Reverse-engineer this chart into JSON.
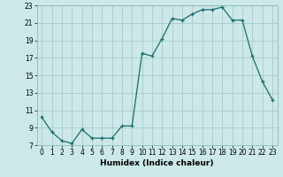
{
  "title": "",
  "xlabel": "Humidex (Indice chaleur)",
  "ylabel": "",
  "background_color": "#cce8e8",
  "grid_color": "#aacccc",
  "line_color": "#1a6b6b",
  "marker_color": "#1a6b6b",
  "x": [
    0,
    1,
    2,
    3,
    4,
    5,
    6,
    7,
    8,
    9,
    10,
    11,
    12,
    13,
    14,
    15,
    16,
    17,
    18,
    19,
    20,
    21,
    22,
    23
  ],
  "y": [
    10.2,
    8.5,
    7.5,
    7.2,
    8.8,
    7.8,
    7.8,
    7.8,
    9.2,
    9.2,
    17.5,
    17.2,
    19.2,
    21.5,
    21.3,
    22.0,
    22.5,
    22.5,
    22.8,
    21.3,
    21.3,
    17.2,
    14.3,
    12.2
  ],
  "ylim": [
    7,
    23
  ],
  "xlim": [
    -0.5,
    23.5
  ],
  "yticks": [
    7,
    9,
    11,
    13,
    15,
    17,
    19,
    21,
    23
  ],
  "xticks": [
    0,
    1,
    2,
    3,
    4,
    5,
    6,
    7,
    8,
    9,
    10,
    11,
    12,
    13,
    14,
    15,
    16,
    17,
    18,
    19,
    20,
    21,
    22,
    23
  ]
}
